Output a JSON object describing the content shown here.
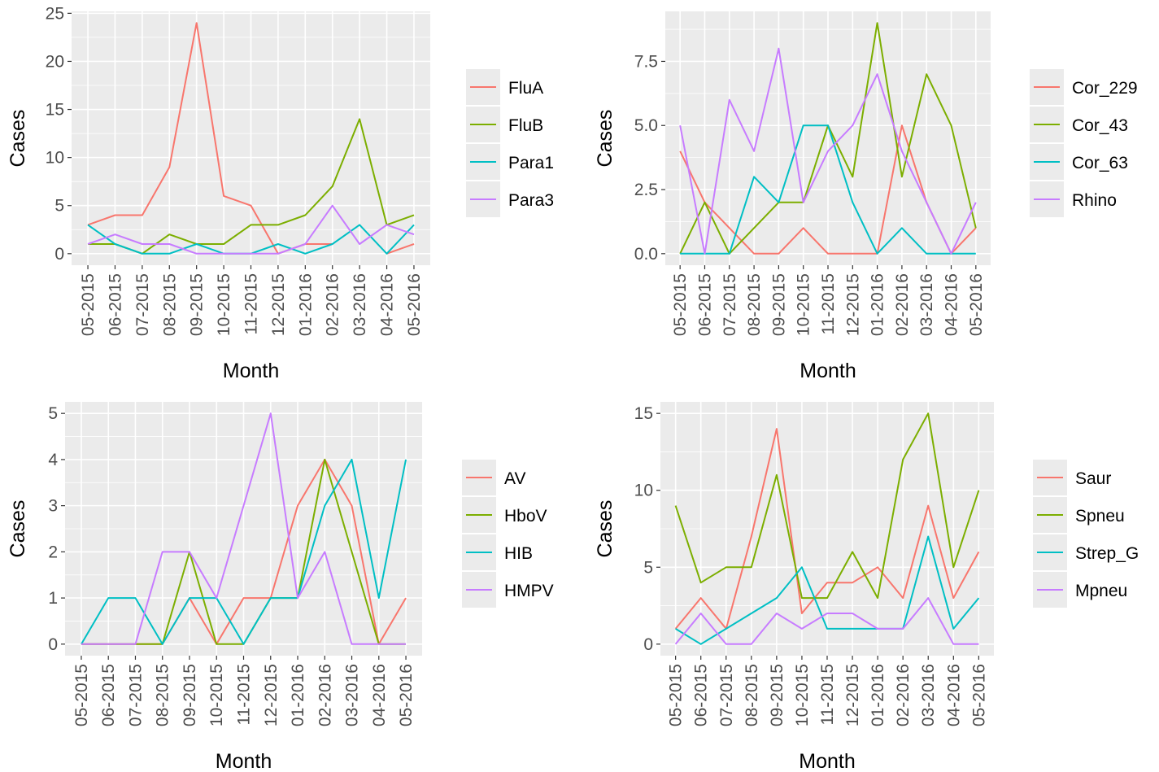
{
  "chart_data": [
    {
      "type": "line",
      "xlabel": "Month",
      "ylabel": "Cases",
      "categories": [
        "05-2015",
        "06-2015",
        "07-2015",
        "08-2015",
        "09-2015",
        "10-2015",
        "11-2015",
        "12-2015",
        "01-2016",
        "02-2016",
        "03-2016",
        "04-2016",
        "05-2016"
      ],
      "ylim": [
        -1.2,
        25.2
      ],
      "yticks": [
        0,
        5,
        10,
        15,
        20,
        25
      ],
      "ytick_labels": [
        "0",
        "5",
        "10",
        "15",
        "20",
        "25"
      ],
      "grid": true,
      "legend_position": "right",
      "series": [
        {
          "name": "FluA",
          "color": "#F8766D",
          "values": [
            3,
            4,
            4,
            9,
            24,
            6,
            5,
            0,
            1,
            1,
            null,
            0,
            1
          ]
        },
        {
          "name": "FluB",
          "color": "#7CAE00",
          "values": [
            1,
            1,
            0,
            2,
            1,
            1,
            3,
            3,
            4,
            7,
            14,
            3,
            4
          ]
        },
        {
          "name": "Para1",
          "color": "#00BFC4",
          "values": [
            3,
            1,
            0,
            0,
            1,
            0,
            0,
            1,
            0,
            1,
            3,
            0,
            3
          ]
        },
        {
          "name": "Para3",
          "color": "#C77CFF",
          "values": [
            1,
            2,
            1,
            1,
            0,
            0,
            0,
            0,
            1,
            5,
            1,
            3,
            2
          ]
        }
      ]
    },
    {
      "type": "line",
      "xlabel": "Month",
      "ylabel": "Cases",
      "categories": [
        "05-2015",
        "06-2015",
        "07-2015",
        "08-2015",
        "09-2015",
        "10-2015",
        "11-2015",
        "12-2015",
        "01-2016",
        "02-2016",
        "03-2016",
        "04-2016",
        "05-2016"
      ],
      "ylim": [
        -0.45,
        9.45
      ],
      "yticks": [
        0,
        2.5,
        5,
        7.5
      ],
      "ytick_labels": [
        "0.0",
        "2.5",
        "5.0",
        "7.5"
      ],
      "grid": true,
      "legend_position": "right",
      "series": [
        {
          "name": "Cor_229",
          "color": "#F8766D",
          "values": [
            4,
            2,
            1,
            0,
            0,
            1,
            0,
            0,
            0,
            5,
            2,
            0,
            1
          ]
        },
        {
          "name": "Cor_43",
          "color": "#7CAE00",
          "values": [
            0,
            2,
            0,
            1,
            2,
            2,
            5,
            3,
            9,
            3,
            7,
            5,
            1
          ]
        },
        {
          "name": "Cor_63",
          "color": "#00BFC4",
          "values": [
            0,
            0,
            0,
            3,
            2,
            5,
            5,
            2,
            0,
            1,
            0,
            0,
            0
          ]
        },
        {
          "name": "Rhino",
          "color": "#C77CFF",
          "values": [
            5,
            0,
            6,
            4,
            8,
            2,
            4,
            5,
            7,
            4,
            2,
            0,
            2
          ]
        }
      ]
    },
    {
      "type": "line",
      "xlabel": "Month",
      "ylabel": "Cases",
      "categories": [
        "05-2015",
        "06-2015",
        "07-2015",
        "08-2015",
        "09-2015",
        "10-2015",
        "11-2015",
        "12-2015",
        "01-2016",
        "02-2016",
        "03-2016",
        "04-2016",
        "05-2016"
      ],
      "ylim": [
        -0.25,
        5.25
      ],
      "yticks": [
        0,
        1,
        2,
        3,
        4,
        5
      ],
      "ytick_labels": [
        "0",
        "1",
        "2",
        "3",
        "4",
        "5"
      ],
      "grid": true,
      "legend_position": "right",
      "series": [
        {
          "name": "AV",
          "color": "#F8766D",
          "values": [
            0,
            0,
            0,
            0,
            1,
            0,
            1,
            1,
            3,
            4,
            3,
            0,
            1
          ]
        },
        {
          "name": "HboV",
          "color": "#7CAE00",
          "values": [
            0,
            0,
            0,
            0,
            2,
            0,
            0,
            1,
            1,
            4,
            2,
            0,
            0
          ]
        },
        {
          "name": "HIB",
          "color": "#00BFC4",
          "values": [
            0,
            1,
            1,
            0,
            1,
            1,
            0,
            1,
            1,
            3,
            4,
            1,
            4
          ]
        },
        {
          "name": "HMPV",
          "color": "#C77CFF",
          "values": [
            0,
            0,
            0,
            2,
            2,
            1,
            3,
            5,
            1,
            2,
            0,
            0,
            0
          ]
        }
      ]
    },
    {
      "type": "line",
      "xlabel": "Month",
      "ylabel": "Cases",
      "categories": [
        "05-2015",
        "06-2015",
        "07-2015",
        "08-2015",
        "09-2015",
        "10-2015",
        "11-2015",
        "12-2015",
        "01-2016",
        "02-2016",
        "03-2016",
        "04-2016",
        "05-2016"
      ],
      "ylim": [
        -0.75,
        15.75
      ],
      "yticks": [
        0,
        5,
        10,
        15
      ],
      "ytick_labels": [
        "0",
        "5",
        "10",
        "15"
      ],
      "grid": true,
      "legend_position": "right",
      "series": [
        {
          "name": "Saur",
          "color": "#F8766D",
          "values": [
            1,
            3,
            1,
            7,
            14,
            2,
            4,
            4,
            5,
            3,
            9,
            3,
            6
          ]
        },
        {
          "name": "Spneu",
          "color": "#7CAE00",
          "values": [
            9,
            4,
            5,
            5,
            11,
            3,
            3,
            6,
            3,
            12,
            15,
            5,
            10
          ]
        },
        {
          "name": "Strep_G",
          "color": "#00BFC4",
          "values": [
            1,
            0,
            1,
            2,
            3,
            5,
            1,
            1,
            1,
            1,
            7,
            1,
            3
          ]
        },
        {
          "name": "Mpneu",
          "color": "#C77CFF",
          "values": [
            0,
            2,
            0,
            0,
            2,
            1,
            2,
            2,
            1,
            1,
            3,
            0,
            0
          ]
        }
      ]
    }
  ]
}
